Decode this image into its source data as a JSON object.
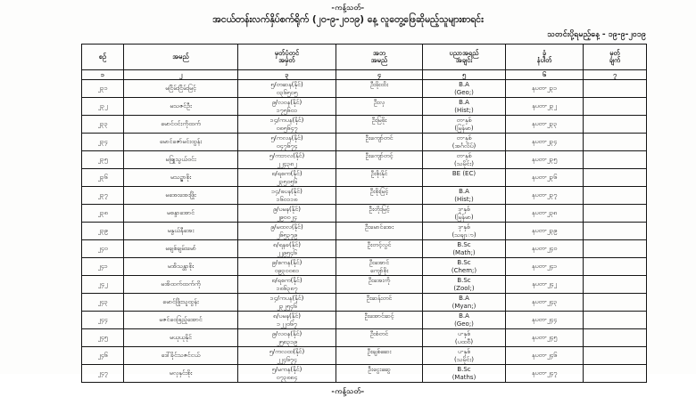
{
  "page": {
    "restricted_top": "-ကန့်သတ်-",
    "title": "အငယ်တန်းလက်နှိပ်စက်ရိုက် (၂၀-၉-၂၀၁၉) နေ့ လူတွေ့ဖြေဆိုမည့်သူများစာရင်း",
    "report_date": "သတင်းပို့ရမည့်နေ့ - ၁၉-၉-၂၀၁၉",
    "restricted_bottom": "-ကန့်သတ်-"
  },
  "table": {
    "headers": [
      {
        "line1": "စဉ်",
        "line2": ""
      },
      {
        "line1": "အမည်",
        "line2": ""
      },
      {
        "line1": "မှတ်ပုံတင်",
        "line2": "အမှတ်"
      },
      {
        "line1": "အဘ",
        "line2": "အမည်"
      },
      {
        "line1": "ပညာအရည်",
        "line2": "အချင်း"
      },
      {
        "line1": "ခုံ",
        "line2": "နံပါတ်"
      },
      {
        "line1": "မှတ်",
        "line2": "ချက်"
      }
    ],
    "col_numbers": [
      "၁",
      "၂",
      "၃",
      "၄",
      "၅",
      "၆",
      "၇"
    ],
    "rows": [
      {
        "no": "၂၃၁",
        "name": "မငြိမ်းငြိမ်းမြင့်",
        "reg1": "၅/တဆန(နိုင်)",
        "reg2": "၀၃၆၅၀၅",
        "father": "ဦးဖိုးထိး",
        "father2": "",
        "edu1": "B.A",
        "edu2": "(Geo;)",
        "seat": "နပတ-၂၃၁",
        "remark": ""
      },
      {
        "no": "၂၃၂",
        "name": "မသဇင်ဦး",
        "reg1": "၉/လဝန(နိုင်)",
        "reg2": "၁၇၅၆၀၁",
        "father": "ဦးလှ",
        "father2": "",
        "edu1": "B.A",
        "edu2": "(Hist;)",
        "seat": "နပတ-၂၃၂",
        "remark": ""
      },
      {
        "no": "၂၃၃",
        "name": "မောင်ဝင်းကိုထက်",
        "reg1": "၁၄/ကပန(နိုင်)",
        "reg2": "၀၈၅၆၄၇",
        "father": "ဦးမြဖိုး",
        "father2": "",
        "edu1": "တ-နှစ်",
        "edu2": "(မြန်မာ)",
        "seat": "နပတ-၂၃၃",
        "remark": ""
      },
      {
        "no": "၂၃၄",
        "name": "မောင်ဇော်မင်းထွန်း",
        "reg1": "၅/ကလန(နိုင်)",
        "reg2": "၀၄၇၆၇၄",
        "father": "ဦးကျော်တင်",
        "father2": "",
        "edu1": "တ-နှစ်",
        "edu2": "(အင်္ဂလိပ်)",
        "seat": "နပတ-၂၃၄",
        "remark": ""
      },
      {
        "no": "၂၃၅",
        "name": "မဖြူသွယ်ဝင်း",
        "reg1": "၅/ကဘလ(နိုင်)",
        "reg2": "၂၂၄၃၈၂",
        "father": "ဦးကျော်တင့်",
        "father2": "",
        "edu1": "တ-နှစ်",
        "edu2": "(သမိုင်း)",
        "seat": "နပတ-၂၃၅",
        "remark": ""
      },
      {
        "no": "၂၃၆",
        "name": "မသဥ္ဇာစိုး",
        "reg1": "၈/ရစက(နိုင်)",
        "reg2": "၂၃၅၀၅၆",
        "father": "ဦးစိုးနိုင်",
        "father2": "",
        "edu1": "BE (EC)",
        "edu2": "",
        "seat": "နပတ-၂၃၆",
        "remark": ""
      },
      {
        "no": "၂၃၇",
        "name": "မအေးအေးဖြိုး",
        "reg1": "၁၄/ဖပန(နိုင်)",
        "reg2": "၁၆၀၁၁၈",
        "father": "ဦးစိုးမြင့်",
        "father2": "",
        "edu1": "B.A",
        "edu2": "(Hist;)",
        "seat": "နပတ-၂၃၇",
        "remark": ""
      },
      {
        "no": "၂၃၈",
        "name": "မစန္ဒာအောင်",
        "reg1": "၉/ပမန(နိုင်)",
        "reg2": "၂၉၀၀၂၄",
        "father": "ဦးတိုးမြင့်",
        "father2": "",
        "edu1": "ဒု-နှစ်",
        "edu2": "(မြန်မာ)",
        "seat": "နပတ-၂၃၈",
        "remark": ""
      },
      {
        "no": "၂၃၉",
        "name": "မနွယ်နီအေး",
        "reg1": "၉/မထလ(နိုင်)",
        "reg2": "၂၆၅၃၇၉",
        "father": "ဦးမောင်အေး",
        "father2": "",
        "edu1": "ဒု-နှစ်",
        "edu2": "(သချၤာ)",
        "seat": "နပတ-၂၃၉",
        "remark": ""
      },
      {
        "no": "၂၄၀",
        "name": "မချစ်ချမ်းမော်",
        "reg1": "၈/ရနခ(နိုင်)",
        "reg2": "၂၂၉၅၄၆",
        "father": "ဦးတင့်လွင်",
        "father2": "",
        "edu1": "B.Sc",
        "edu2": "(Math;)",
        "seat": "နပတ-၂၄၀",
        "remark": ""
      },
      {
        "no": "၂၄၁",
        "name": "မအိသန္တာစိုး",
        "reg1": "၉/စကန(နိုင်)",
        "reg2": "၀၉၃၀၀၈၁",
        "father": "ဦးအောင်",
        "father2": "ကျော်စိုး",
        "edu1": "B.Sc",
        "edu2": "(Chem;)",
        "seat": "နပတ-၂၄၁",
        "remark": ""
      },
      {
        "no": "၂၄၂",
        "name": "မအိထက်ထက်ကို",
        "reg1": "၈/ရစက(နိုင်)",
        "reg2": "၁၈၆၃၈၇",
        "father": "ဦးအေးကို",
        "father2": "",
        "edu1": "B.Sc",
        "edu2": "(Zool;)",
        "seat": "နပတ-၂၄၂",
        "remark": ""
      },
      {
        "no": "၂၄၃",
        "name": "မောင်ဖြိုးသူထွန်း",
        "reg1": "၁၄/ကပန(နိုင်)",
        "reg2": "၂၃၂၅၄၆",
        "father": "ဦးဆန်းတင်",
        "father2": "",
        "edu1": "B.A",
        "edu2": "(Myan;)",
        "seat": "နပတ-၂၄၃",
        "remark": ""
      },
      {
        "no": "၂၄၄",
        "name": "မဇင်ဝေဖြည့်အောင်",
        "reg1": "၈/ပမန(နိုင်)",
        "reg2": "၁၂၂၀၆၇",
        "father": "ဦးအောင်ဆင့်",
        "father2": "",
        "edu1": "B.A",
        "edu2": "(Geo;)",
        "seat": "နပတ-၂၄၄",
        "remark": ""
      },
      {
        "no": "၂၄၅",
        "name": "မယုယုနိုင်",
        "reg1": "၉/လဝန(နိုင်)",
        "reg2": "၂၅၈၃၁၉",
        "father": "ဦးစံတင်",
        "father2": "",
        "edu1": "ပ-နှစ်",
        "edu2": "(ပထဝီ)",
        "seat": "နပတ-၂၄၅",
        "remark": ""
      },
      {
        "no": "၂၄၆",
        "name": "ဒေါ်ခိုင်သဇင်ငယ်",
        "reg1": "၅/ကလထ(နိုင်)",
        "reg2": "၂၂၄၆၇၄",
        "father": "ဦးချစ်ဆေး",
        "father2": "",
        "edu1": "ပ-နှစ်",
        "edu2": "(သမိုင်း)",
        "seat": "နပတ-၂၄၆",
        "remark": ""
      },
      {
        "no": "၂၄၇",
        "name": "မလှနှင်းစိုး",
        "reg1": "၅/မကန(နိုင်)",
        "reg2": "၀၇၃၈၈၄",
        "father": "ဦးငွေးဆွေ",
        "father2": "",
        "edu1": "B.Sc",
        "edu2": "(Maths)",
        "seat": "နပတ-၂၄၇",
        "remark": ""
      }
    ]
  }
}
